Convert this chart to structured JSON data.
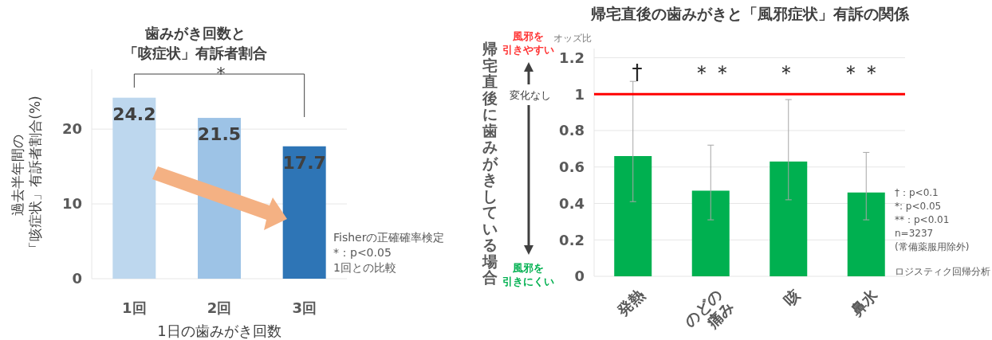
{
  "chart_data": [
    {
      "type": "bar",
      "title": "歯みがき回数と「咳症状」有訴者割合",
      "xlabel": "1日の歯みがき回数",
      "ylabel": "過去半年間の「咳症状」有訴者割合(%)",
      "categories": [
        "1回",
        "2回",
        "3回"
      ],
      "values": [
        24.2,
        21.5,
        17.7
      ],
      "colors": [
        "#bdd7ee",
        "#9dc3e6",
        "#2e75b6"
      ],
      "ylim": [
        0,
        28
      ],
      "yticks": [
        0,
        10,
        20
      ],
      "grid": "y",
      "data_labels": true,
      "annotations": [
        "*",
        "Fisherの正確確率検定",
        "*：p<0.05",
        "1回との比較"
      ]
    },
    {
      "type": "bar",
      "title": "帰宅直後の歯みがきと「風邪症状」有訴の関係",
      "ylabel": "帰宅直後に歯みがきしている場合",
      "categories": [
        "発熱",
        "のどの痛み",
        "咳",
        "鼻水"
      ],
      "values": [
        0.66,
        0.47,
        0.63,
        0.46
      ],
      "color": "#00b050",
      "errors": [
        [
          0.41,
          1.07
        ],
        [
          0.31,
          0.72
        ],
        [
          0.42,
          0.97
        ],
        [
          0.31,
          0.68
        ]
      ],
      "ylim": [
        0,
        1.25
      ],
      "yticks": [
        0,
        0.2,
        0.4,
        0.6,
        0.8,
        1,
        1.2
      ],
      "grid": "y",
      "ref_lines": [
        {
          "axis": "y",
          "value": 1,
          "color": "#ff0000"
        }
      ],
      "annotations": [
        "オッズ比",
        "風邪を引きやすい",
        "変化なし",
        "風邪を引きにくい",
        "†",
        "＊＊",
        "＊",
        "＊＊",
        "†：p<0.1",
        "*: p<0.05",
        "**：p<0.01",
        "n=3237",
        "(常備薬服用除外)",
        "ロジスティク回帰分析"
      ]
    }
  ]
}
